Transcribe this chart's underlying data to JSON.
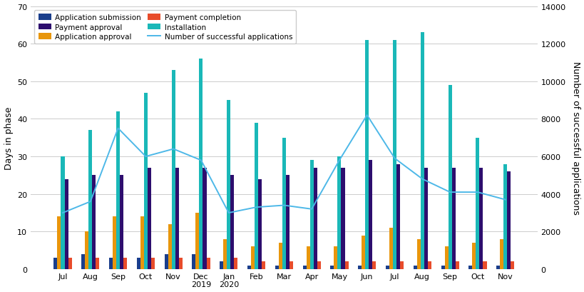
{
  "months": [
    "Jul",
    "Aug",
    "Sep",
    "Oct",
    "Nov",
    "Dec\n2019",
    "Jan\n2020",
    "Feb",
    "Mar",
    "Apr",
    "May",
    "Jun",
    "Jul",
    "Aug",
    "Sep",
    "Oct",
    "Nov"
  ],
  "app_submission": [
    3,
    4,
    3,
    3,
    4,
    4,
    2,
    1,
    1,
    1,
    1,
    1,
    1,
    1,
    1,
    1,
    1
  ],
  "app_approval": [
    14,
    10,
    14,
    14,
    12,
    15,
    8,
    6,
    7,
    6,
    6,
    9,
    11,
    8,
    6,
    7,
    8
  ],
  "installation": [
    30,
    37,
    42,
    47,
    53,
    56,
    45,
    39,
    35,
    29,
    30,
    61,
    61,
    63,
    49,
    35,
    28
  ],
  "payment_approval": [
    24,
    25,
    25,
    27,
    27,
    27,
    25,
    24,
    25,
    27,
    27,
    29,
    28,
    27,
    27,
    27,
    26
  ],
  "payment_completion": [
    3,
    3,
    3,
    3,
    3,
    3,
    3,
    2,
    2,
    2,
    2,
    2,
    2,
    2,
    2,
    2,
    2
  ],
  "successful_apps": [
    3000,
    3600,
    7500,
    6000,
    6400,
    5800,
    3000,
    3300,
    3400,
    3200,
    5800,
    8200,
    5900,
    4800,
    4100,
    4100,
    3700
  ],
  "colors": {
    "app_submission": "#1a3e8c",
    "app_approval": "#e8960c",
    "installation": "#1ab8b8",
    "payment_approval": "#2d0e6e",
    "payment_completion": "#e84c2b",
    "line": "#4db8e8"
  },
  "ylabel_left": "Days in phase",
  "ylabel_right": "Number of successful applications",
  "ylim_left": [
    0,
    70
  ],
  "ylim_right": [
    0,
    14000
  ],
  "yticks_left": [
    0,
    10,
    20,
    30,
    40,
    50,
    60,
    70
  ],
  "yticks_right": [
    0,
    2000,
    4000,
    6000,
    8000,
    10000,
    12000,
    14000
  ],
  "bar_width": 0.13,
  "figsize": [
    8.2,
    4.1
  ],
  "dpi": 100
}
